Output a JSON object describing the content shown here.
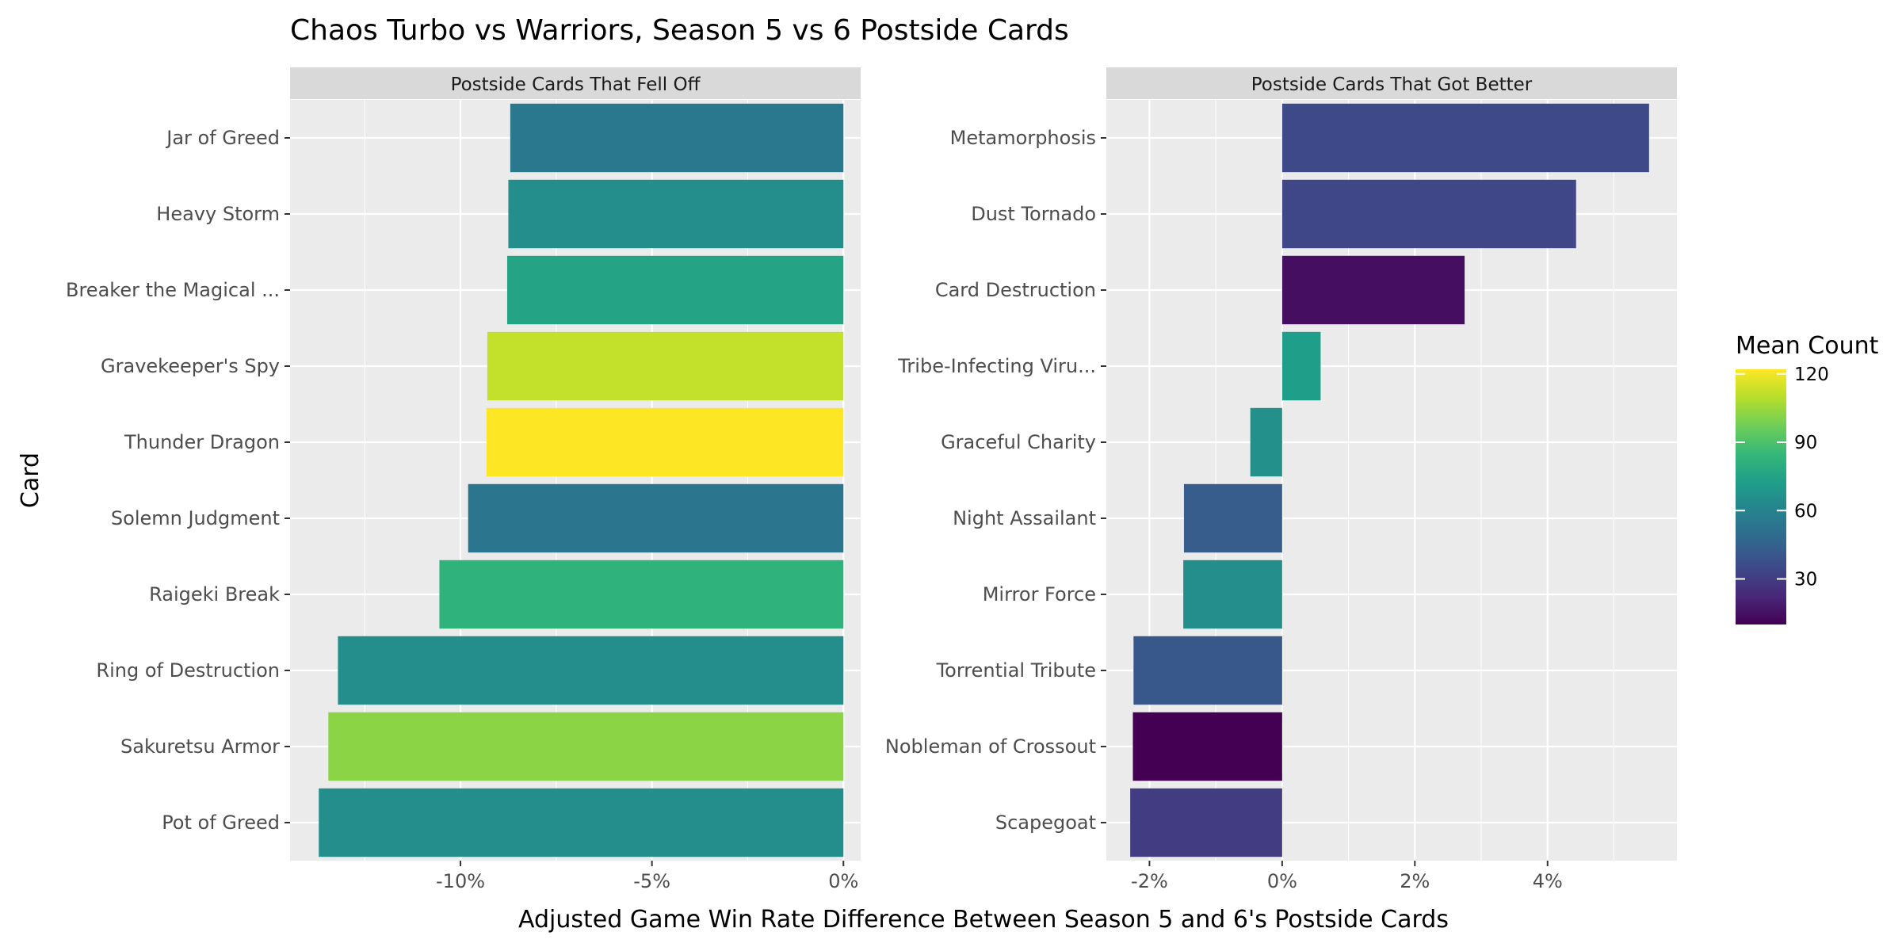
{
  "chart_data": {
    "title": "Chaos Turbo vs Warriors, Season 5 vs 6 Postside Cards",
    "xlabel": "Adjusted Game Win Rate Difference Between Season 5 and 6's Postside Cards",
    "ylabel": "Card",
    "legend": {
      "title": "Mean Count",
      "ticks": [
        30,
        60,
        90,
        120
      ],
      "range": [
        10,
        122
      ],
      "colormap": "viridis",
      "placement": "right"
    },
    "panels": [
      {
        "type": "bar",
        "orientation": "horizontal",
        "strip": "Postside Cards That Fell Off",
        "xlim": [
          -0.1445,
          0.0045
        ],
        "xticks": [
          -0.1,
          -0.05,
          0.0
        ],
        "xtick_labels": [
          "-10%",
          "-5%",
          "0%"
        ],
        "categories": [
          "Jar of Greed",
          "Heavy Storm",
          "Breaker the Magical ...",
          "Gravekeeper's Spy",
          "Thunder Dragon",
          "Solemn Judgment",
          "Raigeki Break",
          "Ring of Destruction",
          "Sakuretsu Armor",
          "Pot of Greed"
        ],
        "values": [
          -0.087,
          -0.0875,
          -0.0878,
          -0.093,
          -0.0932,
          -0.098,
          -0.1055,
          -0.132,
          -0.1345,
          -0.137
        ],
        "mean_count": [
          55,
          65,
          75,
          112,
          122,
          54,
          82,
          65,
          102,
          65
        ]
      },
      {
        "type": "bar",
        "orientation": "horizontal",
        "strip": "Postside Cards That Got Better",
        "xlim": [
          -0.0265,
          0.0595
        ],
        "xticks": [
          -0.02,
          0.0,
          0.02,
          0.04
        ],
        "xtick_labels": [
          "-2%",
          "0%",
          "2%",
          "4%"
        ],
        "categories": [
          "Metamorphosis",
          "Dust Tornado",
          "Card Destruction",
          "Tribe-Infecting Viru...",
          "Graceful Charity",
          "Night Assailant",
          "Mirror Force",
          "Torrential Tribute",
          "Nobleman of Crossout",
          "Scapegoat"
        ],
        "values": [
          0.0553,
          0.0443,
          0.0275,
          0.0058,
          -0.0048,
          -0.0148,
          -0.0149,
          -0.0224,
          -0.0225,
          -0.0229
        ],
        "mean_count": [
          35,
          34,
          14,
          72,
          66,
          43,
          65,
          41,
          10,
          30
        ]
      }
    ]
  }
}
